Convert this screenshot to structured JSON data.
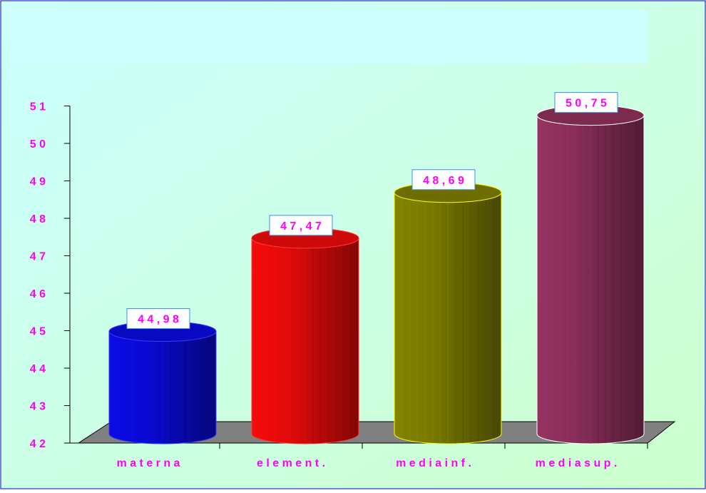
{
  "chart_data": {
    "type": "bar",
    "bar_shape": "cylinder",
    "title": "",
    "xlabel": "",
    "ylabel": "",
    "ylim": [
      42,
      51
    ],
    "yticks": [
      42,
      43,
      44,
      45,
      46,
      47,
      48,
      49,
      50,
      51
    ],
    "ytick_labels": [
      "4 2",
      "4 3",
      "4 4",
      "4 5",
      "4 6",
      "4 7",
      "4 8",
      "4 9",
      "5 0",
      "5 1"
    ],
    "categories": [
      "materna",
      "element.",
      "media inf.",
      "media sup."
    ],
    "category_labels": [
      "m a t e r n a",
      "e l e m e n t .",
      "m e d i a  i n f .",
      "m e d i a  s u p ."
    ],
    "values": [
      44.98,
      47.47,
      48.69,
      50.75
    ],
    "data_labels": [
      "4 4 , 9 8",
      "4 7 , 4 7",
      "4 8 , 6 9",
      "5 0 , 7 5"
    ],
    "grid": false,
    "legend": "none",
    "colors": {
      "bars": [
        "#0a0ad2",
        "#e00a0a",
        "#787800",
        "#882e58"
      ],
      "bar_edges": [
        "#3a3aff",
        "#ff3a3a",
        "#ffff00",
        "#ffffff"
      ],
      "text": "#ff00ff",
      "title_band": "#ccffff",
      "background_from": "#ccffff",
      "background_to": "#ccffcc",
      "floor": "#808080",
      "border": "#0000cc",
      "label_box_fill": "#ffffff",
      "label_box_border": "#3a8ee6"
    }
  }
}
